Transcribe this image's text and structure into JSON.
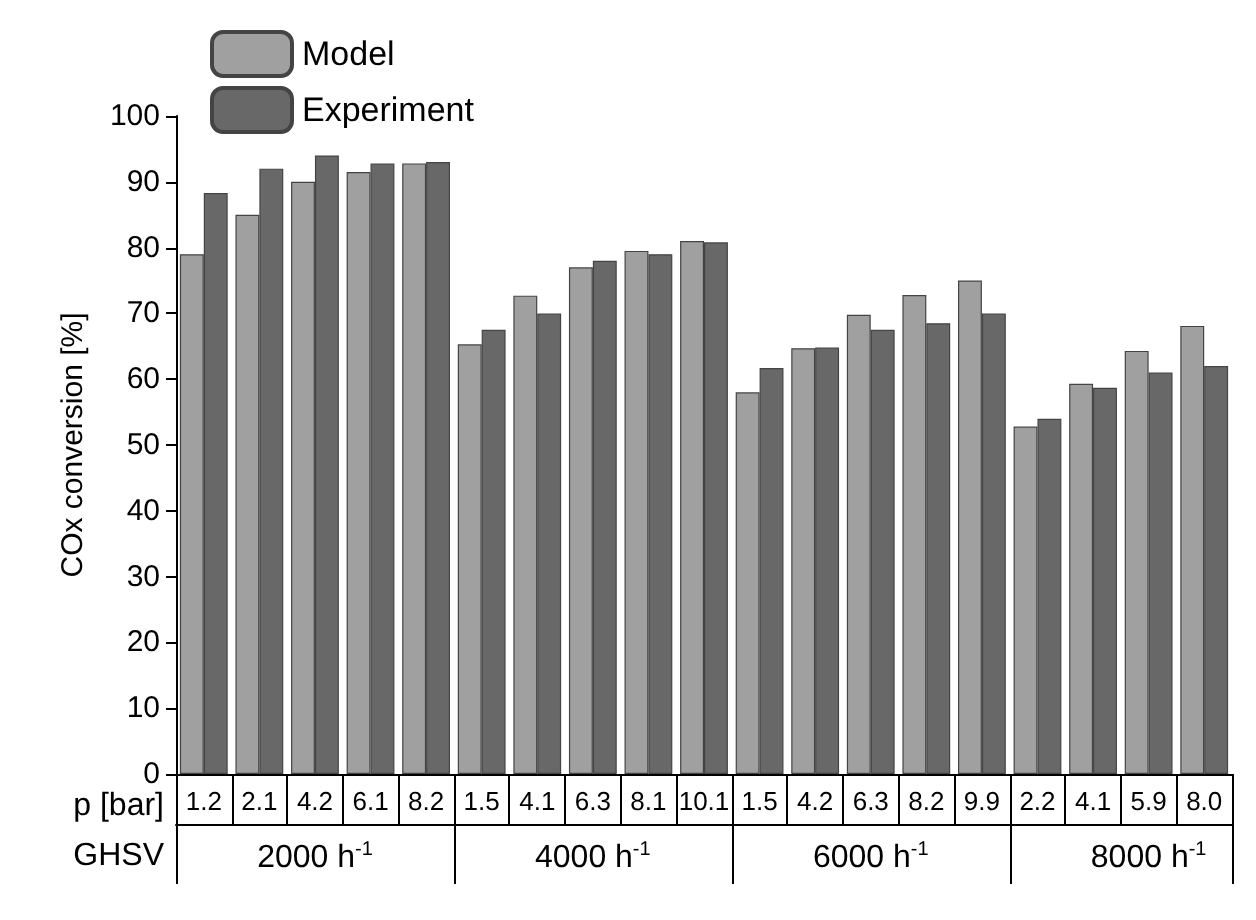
{
  "chart_data": {
    "type": "bar",
    "ylabel": "COx conversion [%]",
    "xlabel": "p [bar]",
    "categories": [
      "1.2",
      "2.1",
      "4.2",
      "6.1",
      "8.2",
      "1.5",
      "4.1",
      "6.3",
      "8.1",
      "10.1",
      "1.5",
      "4.2",
      "6.3",
      "8.2",
      "9.9",
      "2.2",
      "4.1",
      "5.9",
      "8.0"
    ],
    "series": [
      {
        "name": "Model",
        "color": "#a0a0a0",
        "values": [
          79,
          85,
          90,
          91.5,
          92.8,
          65.3,
          72.7,
          77,
          79.5,
          81,
          58,
          64.7,
          69.8,
          72.8,
          75,
          52.8,
          59.3,
          64.3,
          68.1
        ]
      },
      {
        "name": "Experiment",
        "color": "#686868",
        "values": [
          88.3,
          92,
          94,
          92.8,
          93,
          67.5,
          70,
          78,
          79,
          80.8,
          61.7,
          64.8,
          67.5,
          68.5,
          70,
          54,
          58.7,
          61,
          62
        ]
      }
    ],
    "annotations": [
      "GHSV",
      "2000 h$^{-1}$",
      "4000 h$^{-1}$",
      "6000 h$^{-1}$",
      "8000 h$^{-1}$"
    ],
    "ylim": [
      0,
      100
    ],
    "yticks": [
      0,
      10,
      20,
      30,
      40,
      50,
      60,
      70,
      80,
      90,
      100
    ],
    "grid": false,
    "legend": "top left"
  }
}
